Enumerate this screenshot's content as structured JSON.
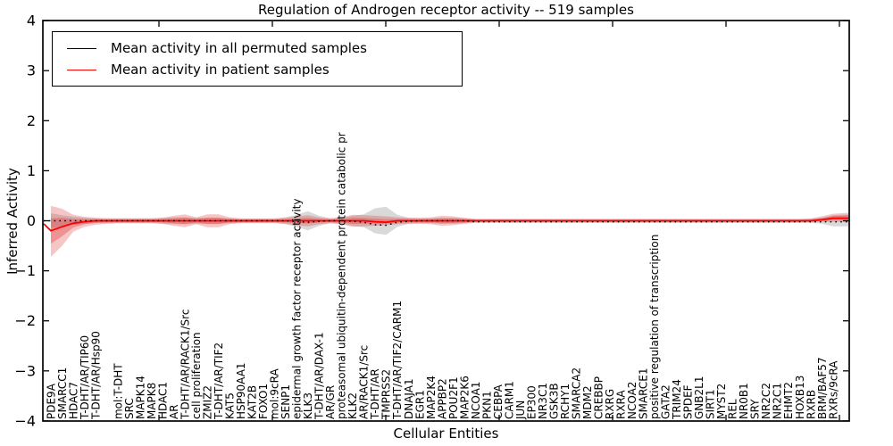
{
  "figure": {
    "title": "Regulation of Androgen receptor activity -- 519 samples",
    "xlabel": "Cellular Entities",
    "ylabel": "Inferred Activity",
    "legend": [
      {
        "label": "Mean activity in all permuted samples",
        "color": "#000000"
      },
      {
        "label": "Mean activity in patient samples",
        "color": "#ff0000"
      }
    ]
  },
  "chart_data": {
    "type": "line",
    "title": "Regulation of Androgen receptor activity -- 519 samples",
    "xlabel": "Cellular Entities",
    "ylabel": "Inferred Activity",
    "ylim": [
      -4,
      4
    ],
    "yticks": [
      4,
      3,
      2,
      1,
      0,
      -1,
      -2,
      -3,
      -4
    ],
    "ytick_labels": [
      "4",
      "3",
      "2",
      "1",
      "0",
      "−1",
      "−2",
      "−3",
      "−4"
    ],
    "grid": false,
    "legend_position": "upper left",
    "categories": [
      "PDE9A",
      "SMARCC1",
      "HDAC7",
      "T-DHT/AR/TIP60",
      "T-DHT/AR/Hsp90",
      "",
      "mol:T-DHT",
      "SRC",
      "MAPK14",
      "MAPK8",
      "HDAC1",
      "AR",
      "T-DHT/AR/RACK1/Src",
      "cell proliferation",
      "ZMIZ2",
      "T-DHT/AR/TIF2",
      "KAT5",
      "HSP90AA1",
      "KAT2B",
      "FOXO1",
      "mol:9cRA",
      "SENP1",
      "epidermal growth factor receptor activity",
      "KLK3",
      "T-DHT/AR/DAX-1",
      "AR/GR",
      "proteasomal ubiquitin-dependent protein catabolic pr",
      "KLK2",
      "AR/RACK1/Src",
      "T-DHT/AR",
      "TMPRSS2",
      "T-DHT/AR/TIF2/CARM1",
      "DNAJA1",
      "EGR1",
      "MAP2K4",
      "APPBP2",
      "POU2F1",
      "MAP2K6",
      "NCOA1",
      "PKN1",
      "CEBPA",
      "CARM1",
      "JUN",
      "EP300",
      "NR3C1",
      "GSK3B",
      "RCHY1",
      "SMARCA2",
      "MDM2",
      "CREBBP",
      "RXRG",
      "RXRA",
      "NCOA2",
      "SMARCE1",
      "positive regulation of transcription",
      "GATA2",
      "TRIM24",
      "SPDEF",
      "GNB2L1",
      "SIRT1",
      "MYST2",
      "REL",
      "NR0B1",
      "SRY",
      "NR2C2",
      "NR2C1",
      "EHMT2",
      "HOXB13",
      "RXRB",
      "BRM/BAF57",
      "RXRs/9cRA"
    ],
    "series": [
      {
        "name": "Mean activity in all permuted samples",
        "color": "#000000",
        "style": "dotted",
        "values": [
          0,
          0,
          0,
          0,
          0,
          0,
          0,
          0,
          0,
          0,
          0,
          0,
          0,
          0,
          0,
          0,
          0,
          0,
          0,
          0,
          0,
          0,
          -0.02,
          -0.03,
          -0.01,
          0,
          0,
          -0.01,
          -0.03,
          -0.08,
          -0.09,
          -0.03,
          -0.01,
          0,
          0,
          0,
          0,
          0,
          -0.02,
          -0.02,
          -0.02,
          -0.02,
          -0.02,
          -0.02,
          -0.02,
          -0.02,
          -0.02,
          -0.02,
          -0.02,
          -0.02,
          -0.02,
          -0.02,
          -0.02,
          -0.02,
          -0.02,
          -0.02,
          -0.02,
          -0.02,
          -0.02,
          -0.02,
          -0.02,
          -0.02,
          -0.02,
          -0.02,
          -0.02,
          -0.02,
          -0.02,
          -0.02,
          -0.02,
          -0.02,
          -0.02
        ]
      },
      {
        "name": "Mean activity in patient samples",
        "color": "#ff0000",
        "style": "solid",
        "values": [
          -0.2,
          -0.12,
          -0.05,
          -0.02,
          0,
          0,
          0,
          0,
          0,
          0,
          0,
          0,
          0,
          0,
          0,
          0,
          0,
          0,
          0,
          0,
          0,
          0,
          0,
          0,
          0,
          0,
          0,
          0,
          0,
          -0.02,
          -0.03,
          0,
          0,
          0,
          0,
          0,
          0,
          0,
          0,
          0,
          0,
          0,
          0,
          0,
          0,
          0,
          0,
          0,
          0,
          0,
          0,
          0,
          0,
          0,
          0,
          0,
          0,
          0,
          0,
          0,
          0,
          0,
          0,
          0,
          0,
          0,
          0,
          0,
          0,
          0.02,
          0.05
        ]
      }
    ],
    "bands": [
      {
        "name": "permuted samples spread",
        "color": "#888888",
        "opacity": 0.32,
        "upper": [
          0.15,
          0.11,
          0.08,
          0.06,
          0.05,
          0.05,
          0.05,
          0.05,
          0.05,
          0.05,
          0.06,
          0.07,
          0.07,
          0.06,
          0.06,
          0.06,
          0.05,
          0.04,
          0.04,
          0.04,
          0.04,
          0.07,
          0.12,
          0.19,
          0.1,
          0.05,
          0.06,
          0.1,
          0.13,
          0.25,
          0.28,
          0.12,
          0.06,
          0.05,
          0.05,
          0.06,
          0.06,
          0.05,
          0.03,
          0.03,
          0.03,
          0.03,
          0.03,
          0.03,
          0.03,
          0.03,
          0.03,
          0.03,
          0.03,
          0.03,
          0.03,
          0.03,
          0.03,
          0.03,
          0.03,
          0.03,
          0.03,
          0.03,
          0.03,
          0.03,
          0.03,
          0.03,
          0.03,
          0.03,
          0.03,
          0.03,
          0.03,
          0.03,
          0.04,
          0.06,
          0.11
        ],
        "lower": [
          -0.15,
          -0.11,
          -0.08,
          -0.06,
          -0.05,
          -0.05,
          -0.05,
          -0.05,
          -0.05,
          -0.05,
          -0.06,
          -0.07,
          -0.07,
          -0.06,
          -0.06,
          -0.06,
          -0.05,
          -0.04,
          -0.04,
          -0.04,
          -0.04,
          -0.07,
          -0.12,
          -0.19,
          -0.1,
          -0.05,
          -0.06,
          -0.1,
          -0.13,
          -0.25,
          -0.28,
          -0.12,
          -0.06,
          -0.05,
          -0.05,
          -0.06,
          -0.06,
          -0.05,
          -0.03,
          -0.03,
          -0.03,
          -0.03,
          -0.03,
          -0.03,
          -0.03,
          -0.03,
          -0.03,
          -0.03,
          -0.03,
          -0.03,
          -0.03,
          -0.03,
          -0.03,
          -0.03,
          -0.03,
          -0.03,
          -0.03,
          -0.03,
          -0.03,
          -0.03,
          -0.03,
          -0.03,
          -0.03,
          -0.03,
          -0.03,
          -0.03,
          -0.03,
          -0.03,
          -0.04,
          -0.06,
          -0.11
        ]
      },
      {
        "name": "patient samples spread",
        "color": "#dd3333",
        "opacity": 0.28,
        "upper": [
          0.3,
          0.24,
          0.12,
          0.08,
          0.06,
          0.05,
          0.05,
          0.05,
          0.05,
          0.05,
          0.06,
          0.1,
          0.13,
          0.07,
          0.13,
          0.13,
          0.07,
          0.05,
          0.05,
          0.05,
          0.05,
          0.06,
          0.09,
          0.11,
          0.07,
          0.05,
          0.07,
          0.12,
          0.11,
          0.1,
          0.09,
          0.07,
          0.06,
          0.06,
          0.07,
          0.1,
          0.09,
          0.06,
          0.04,
          0.04,
          0.04,
          0.04,
          0.04,
          0.04,
          0.04,
          0.04,
          0.04,
          0.04,
          0.04,
          0.04,
          0.04,
          0.04,
          0.04,
          0.04,
          0.04,
          0.04,
          0.04,
          0.04,
          0.04,
          0.04,
          0.04,
          0.04,
          0.04,
          0.04,
          0.04,
          0.04,
          0.04,
          0.04,
          0.05,
          0.09,
          0.14
        ],
        "lower": [
          -0.72,
          -0.5,
          -0.22,
          -0.12,
          -0.08,
          -0.06,
          -0.05,
          -0.05,
          -0.05,
          -0.05,
          -0.06,
          -0.1,
          -0.13,
          -0.07,
          -0.13,
          -0.13,
          -0.07,
          -0.05,
          -0.05,
          -0.05,
          -0.05,
          -0.06,
          -0.09,
          -0.11,
          -0.07,
          -0.05,
          -0.07,
          -0.12,
          -0.11,
          -0.1,
          -0.09,
          -0.07,
          -0.06,
          -0.06,
          -0.07,
          -0.1,
          -0.09,
          -0.06,
          -0.04,
          -0.04,
          -0.04,
          -0.04,
          -0.04,
          -0.04,
          -0.04,
          -0.04,
          -0.04,
          -0.04,
          -0.04,
          -0.04,
          -0.04,
          -0.04,
          -0.04,
          -0.04,
          -0.04,
          -0.04,
          -0.04,
          -0.04,
          -0.04,
          -0.04,
          -0.04,
          -0.04,
          -0.04,
          -0.04,
          -0.04,
          -0.04,
          -0.04,
          -0.04,
          -0.03,
          -0.02,
          -0.02
        ]
      }
    ]
  }
}
